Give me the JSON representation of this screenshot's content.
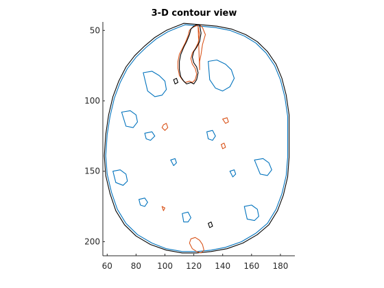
{
  "chart_data": {
    "type": "contour",
    "title": "3-D contour view",
    "xlabel": "",
    "ylabel": "",
    "xlim": [
      57,
      190
    ],
    "ylim": [
      210,
      44
    ],
    "y_direction": "reversed",
    "grid": false,
    "legend": "none",
    "x_ticks": [
      60,
      80,
      100,
      120,
      140,
      160,
      180
    ],
    "y_ticks": [
      50,
      100,
      150,
      200
    ],
    "colors": {
      "black": "#000000",
      "blue": "#0072BD",
      "orange": "#D95319"
    },
    "series": [
      {
        "level": "outer",
        "color": "#000000",
        "x": [
          113,
          125,
          136,
          146,
          156,
          164,
          171,
          177,
          181,
          184,
          186,
          186,
          186,
          185,
          182,
          178,
          172,
          164,
          154,
          143,
          132,
          122,
          112,
          101,
          90,
          80,
          72,
          66,
          62,
          59,
          58,
          59,
          61,
          64,
          68,
          73,
          79,
          86,
          93,
          101,
          108,
          113
        ],
        "y": [
          45,
          46,
          47,
          49,
          53,
          58,
          65,
          74,
          84,
          96,
          110,
          125,
          140,
          154,
          167,
          178,
          188,
          195,
          201,
          205,
          207,
          208,
          208,
          206,
          202,
          196,
          188,
          178,
          166,
          153,
          139,
          124,
          110,
          97,
          86,
          76,
          68,
          61,
          55,
          50,
          47,
          45
        ]
      },
      {
        "level": "outer",
        "color": "#0072BD",
        "x": [
          114,
          125,
          135,
          145,
          155,
          163,
          170,
          176,
          180,
          183,
          185,
          185,
          185,
          184,
          181,
          177,
          171,
          163,
          153,
          142,
          132,
          122,
          112,
          101,
          91,
          81,
          73,
          67,
          63,
          60,
          59,
          60,
          62,
          65,
          69,
          74,
          80,
          87,
          94,
          102,
          109,
          114
        ],
        "y": [
          46,
          47,
          48,
          50,
          54,
          59,
          66,
          75,
          85,
          97,
          111,
          125,
          140,
          153,
          166,
          177,
          187,
          194,
          200,
          204,
          206,
          207,
          207,
          205,
          201,
          195,
          187,
          177,
          165,
          152,
          139,
          124,
          111,
          98,
          87,
          77,
          69,
          62,
          56,
          51,
          48,
          46
        ]
      },
      {
        "level": "frontal-region",
        "color": "#D95319",
        "x": [
          123,
          124,
          123,
          121,
          119,
          118,
          119,
          121,
          122,
          121,
          119,
          117,
          114,
          112,
          110,
          109,
          109,
          110,
          112,
          114,
          116,
          117,
          119,
          121,
          124,
          126,
          128,
          126,
          125,
          124,
          124,
          123
        ],
        "y": [
          47,
          53,
          59,
          63,
          66,
          70,
          74,
          77,
          81,
          85,
          87,
          86,
          87,
          85,
          82,
          77,
          72,
          67,
          63,
          59,
          54,
          50,
          48,
          47,
          46,
          48,
          53,
          60,
          67,
          72,
          78,
          47
        ]
      },
      {
        "level": "frontal-region",
        "color": "#000000",
        "x": [
          124,
          125,
          124,
          122,
          120,
          119,
          120,
          122,
          123,
          122,
          120,
          118,
          115,
          113,
          111,
          110,
          110,
          111,
          113,
          115,
          117,
          118,
          120,
          122,
          124
        ],
        "y": [
          46,
          52,
          58,
          62,
          65,
          69,
          73,
          76,
          80,
          85,
          88,
          87,
          88,
          86,
          83,
          78,
          72,
          67,
          62,
          58,
          53,
          49,
          47,
          46,
          46
        ]
      },
      {
        "level": "lesion",
        "color": "#D95319",
        "x": [
          118,
          121,
          124,
          126,
          127,
          125,
          122,
          119,
          117,
          118
        ],
        "y": [
          198,
          197,
          199,
          202,
          206,
          208,
          207,
          205,
          201,
          198
        ]
      },
      {
        "level": "lesion",
        "color": "#D95319",
        "x": [
          99,
          101,
          102,
          100,
          98,
          99
        ],
        "y": [
          117,
          116,
          119,
          121,
          119,
          117
        ]
      },
      {
        "level": "lesion",
        "color": "#D95319",
        "x": [
          139,
          141,
          142,
          140,
          139
        ],
        "y": [
          131,
          130,
          133,
          134,
          131
        ]
      },
      {
        "level": "lesion",
        "color": "#D95319",
        "x": [
          140,
          143,
          144,
          142,
          140
        ],
        "y": [
          113,
          112,
          115,
          116,
          113
        ]
      },
      {
        "level": "lesion",
        "color": "#D95319",
        "x": [
          98,
          100,
          99,
          98
        ],
        "y": [
          175,
          176,
          178,
          175
        ]
      },
      {
        "level": "inner",
        "color": "#0072BD",
        "x": [
          130,
          136,
          142,
          146,
          148,
          145,
          140,
          135,
          131,
          130
        ],
        "y": [
          72,
          71,
          74,
          78,
          84,
          90,
          93,
          91,
          85,
          72
        ]
      },
      {
        "level": "inner",
        "color": "#0072BD",
        "x": [
          85,
          91,
          96,
          100,
          101,
          98,
          93,
          88,
          85
        ],
        "y": [
          80,
          79,
          82,
          86,
          92,
          96,
          97,
          93,
          80
        ]
      },
      {
        "level": "inner",
        "color": "#0072BD",
        "x": [
          70,
          76,
          80,
          81,
          78,
          73,
          70
        ],
        "y": [
          108,
          107,
          110,
          115,
          119,
          118,
          108
        ]
      },
      {
        "level": "inner",
        "color": "#0072BD",
        "x": [
          64,
          69,
          73,
          74,
          71,
          66,
          64
        ],
        "y": [
          150,
          149,
          152,
          157,
          160,
          158,
          150
        ]
      },
      {
        "level": "inner",
        "color": "#0072BD",
        "x": [
          162,
          168,
          172,
          174,
          171,
          166,
          162
        ],
        "y": [
          142,
          141,
          144,
          149,
          153,
          152,
          142
        ]
      },
      {
        "level": "inner",
        "color": "#0072BD",
        "x": [
          155,
          160,
          164,
          165,
          162,
          157,
          155
        ],
        "y": [
          175,
          174,
          177,
          182,
          185,
          184,
          175
        ]
      },
      {
        "level": "inner",
        "color": "#0072BD",
        "x": [
          112,
          116,
          118,
          116,
          113,
          112
        ],
        "y": [
          180,
          179,
          183,
          186,
          186,
          180
        ]
      },
      {
        "level": "inner",
        "color": "#0072BD",
        "x": [
          129,
          133,
          135,
          133,
          130,
          129
        ],
        "y": [
          122,
          121,
          125,
          128,
          127,
          122
        ]
      },
      {
        "level": "inner",
        "color": "#0072BD",
        "x": [
          104,
          107,
          108,
          106,
          104
        ],
        "y": [
          142,
          141,
          144,
          146,
          142
        ]
      },
      {
        "level": "inner",
        "color": "#0072BD",
        "x": [
          145,
          148,
          149,
          147,
          145
        ],
        "y": [
          150,
          149,
          152,
          154,
          150
        ]
      },
      {
        "level": "inner",
        "color": "#0072BD",
        "x": [
          82,
          86,
          88,
          86,
          83,
          82
        ],
        "y": [
          170,
          169,
          172,
          175,
          174,
          170
        ]
      },
      {
        "level": "inner",
        "color": "#0072BD",
        "x": [
          86,
          91,
          93,
          90,
          87,
          86
        ],
        "y": [
          123,
          122,
          125,
          128,
          127,
          123
        ]
      },
      {
        "level": "inner",
        "color": "#000000",
        "x": [
          106,
          108,
          109,
          107,
          106
        ],
        "y": [
          85,
          84,
          87,
          88,
          85
        ]
      },
      {
        "level": "inner",
        "color": "#000000",
        "x": [
          130,
          132,
          133,
          131,
          130
        ],
        "y": [
          187,
          186,
          189,
          190,
          187
        ]
      }
    ]
  }
}
